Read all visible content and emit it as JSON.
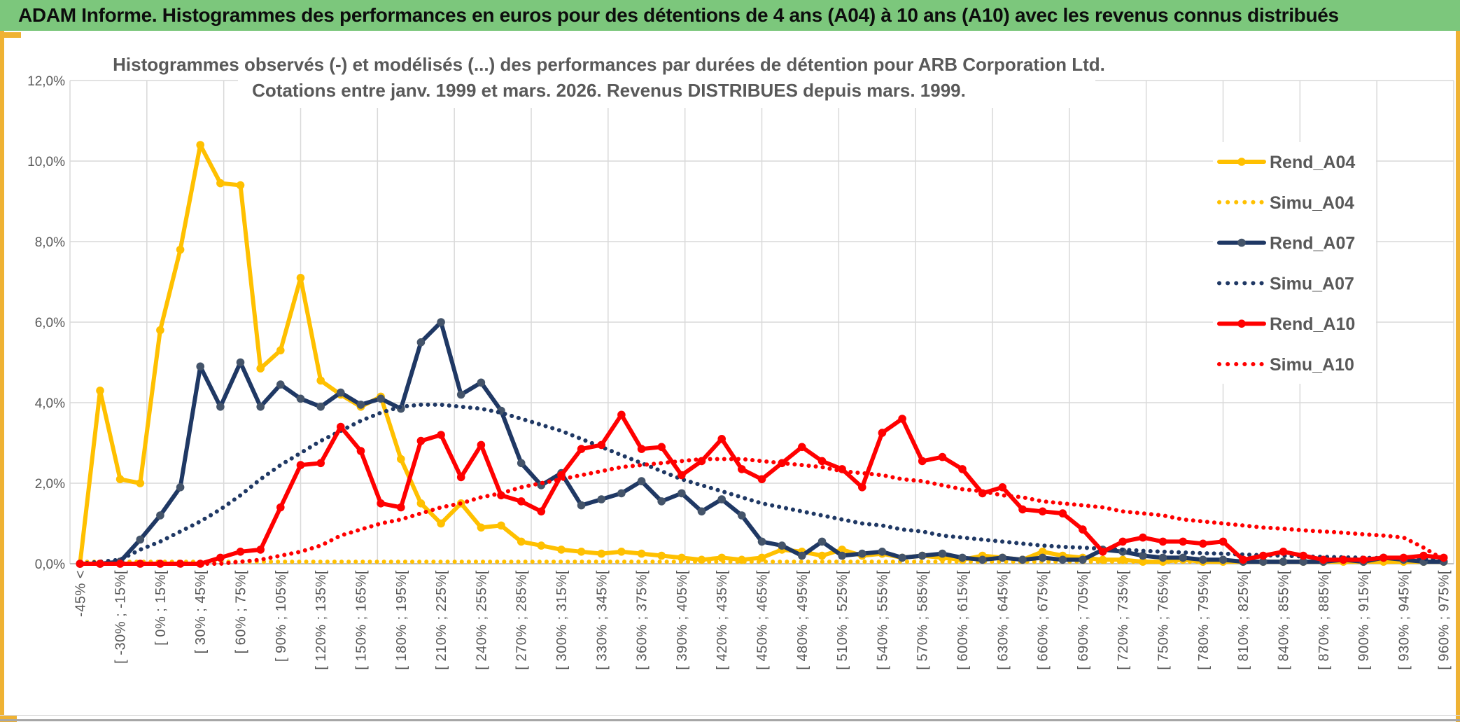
{
  "header": {
    "title": "ADAM Informe. Histogrammes des performances en euros pour des détentions de 4 ans (A04) à 10 ans (A10) avec les revenus connus distribués"
  },
  "chart_data": {
    "type": "line",
    "title": "Histogrammes observés (-) et modélisés (...) des performances par durées de détention pour ARB Corporation Ltd.",
    "subtitle": "Cotations entre janv. 1999 et mars. 2026. Revenus DISTRIBUES depuis mars. 1999.",
    "ylim": [
      0,
      12
    ],
    "y_tick_step_pct": 2,
    "y_tick_labels": [
      "0,0%",
      "2,0%",
      "4,0%",
      "6,0%",
      "8,0%",
      "10,0%",
      "12,0%"
    ],
    "x_bin_width_pct": 15,
    "n_points": 69,
    "x_labels_every": 2,
    "x_tick_labels": [
      "-45% <",
      "[ -30% ; -15%[",
      "[ 0% ; 15%[",
      "[ 30% ; 45%[",
      "[ 60% ; 75%[",
      "[ 90% ; 105%[",
      "[ 120% ; 135%[",
      "[ 150% ; 165%[",
      "[ 180% ; 195%[",
      "[ 210% ; 225%[",
      "[ 240% ; 255%[",
      "[ 270% ; 285%[",
      "[ 300% ; 315%[",
      "[ 330% ; 345%[",
      "[ 360% ; 375%[",
      "[ 390% ; 405%[",
      "[ 420% ; 435%[",
      "[ 450% ; 465%[",
      "[ 480% ; 495%[",
      "[ 510% ; 525%[",
      "[ 540% ; 555%[",
      "[ 570% ; 585%[",
      "[ 600% ; 615%[",
      "[ 630% ; 645%[",
      "[ 660% ; 675%[",
      "[ 690% ; 705%[",
      "[ 720% ; 735%[",
      "[ 750% ; 765%[",
      "[ 780% ; 795%[",
      "[ 810% ; 825%[",
      "[ 840% ; 855%[",
      "[ 870% ; 885%[",
      "[ 900% ; 915%[",
      "[ 930% ; 945%[",
      "[ 960% ; 975%["
    ],
    "grid": true,
    "legend_position": "right-overlay",
    "series": [
      {
        "name": "Rend_A04",
        "color": "#FFC000",
        "style": "solid",
        "marker": "circle",
        "marker_color": "#FFC000",
        "values": [
          0,
          4.3,
          2.1,
          2,
          5.8,
          7.8,
          10.4,
          9.45,
          9.4,
          4.85,
          5.3,
          7.1,
          4.55,
          4.2,
          3.9,
          4.15,
          2.6,
          1.5,
          1,
          1.5,
          0.9,
          0.95,
          0.55,
          0.45,
          0.35,
          0.3,
          0.25,
          0.3,
          0.25,
          0.2,
          0.15,
          0.1,
          0.15,
          0.1,
          0.15,
          0.35,
          0.3,
          0.2,
          0.35,
          0.2,
          0.25,
          0.15,
          0.2,
          0.15,
          0.1,
          0.2,
          0.15,
          0.1,
          0.3,
          0.2,
          0.15,
          0.1,
          0.1,
          0.05,
          0.05,
          0.1,
          0.05,
          0.05,
          0.05,
          0.05,
          0.05,
          0.05,
          0.05,
          0.05,
          0.05,
          0.05,
          0.05,
          0.05,
          0.05
        ]
      },
      {
        "name": "Simu_A04",
        "color": "#FFC000",
        "style": "dotted",
        "marker": "none",
        "values": [
          0.05,
          0.05,
          0.05,
          0.05,
          0.05,
          0.05,
          0.05,
          0.05,
          0.05,
          0.05,
          0.05,
          0.05,
          0.05,
          0.05,
          0.05,
          0.05,
          0.05,
          0.05,
          0.05,
          0.05,
          0.05,
          0.05,
          0.05,
          0.05,
          0.05,
          0.05,
          0.05,
          0.05,
          0.05,
          0.05,
          0.05,
          0.05,
          0.05,
          0.05,
          0.05,
          0.05,
          0.05,
          0.05,
          0.05,
          0.05,
          0.05,
          0.05,
          0.05,
          0.05,
          0.05,
          0.05,
          0.05,
          0.05,
          0.05,
          0.05,
          0.05,
          0.05,
          0.05,
          0.05,
          0.05,
          0.05,
          0.05,
          0.05,
          0.05,
          0.05,
          0.05,
          0.05,
          0.05,
          0.05,
          0.05,
          0.05,
          0.05,
          0.05,
          0.05
        ]
      },
      {
        "name": "Rend_A07",
        "color": "#1F3864",
        "style": "solid",
        "marker": "circle",
        "marker_color": "#44546A",
        "values": [
          0,
          0,
          0.05,
          0.6,
          1.2,
          1.9,
          4.9,
          3.9,
          5,
          3.9,
          4.45,
          4.1,
          3.9,
          4.25,
          3.95,
          4.1,
          3.85,
          5.5,
          6,
          4.2,
          4.5,
          3.8,
          2.5,
          1.95,
          2.25,
          1.45,
          1.6,
          1.75,
          2.05,
          1.55,
          1.75,
          1.3,
          1.6,
          1.2,
          0.55,
          0.45,
          0.2,
          0.55,
          0.2,
          0.25,
          0.3,
          0.15,
          0.2,
          0.25,
          0.15,
          0.1,
          0.15,
          0.1,
          0.15,
          0.1,
          0.1,
          0.35,
          0.3,
          0.2,
          0.15,
          0.15,
          0.1,
          0.1,
          0.05,
          0.05,
          0.05,
          0.05,
          0.05,
          0.1,
          0.05,
          0.15,
          0.1,
          0.05,
          0.05
        ]
      },
      {
        "name": "Simu_A07",
        "color": "#1F3864",
        "style": "dotted",
        "marker": "none",
        "values": [
          0,
          0.05,
          0.1,
          0.35,
          0.55,
          0.8,
          1.05,
          1.35,
          1.7,
          2.1,
          2.45,
          2.75,
          3.05,
          3.3,
          3.55,
          3.75,
          3.9,
          3.95,
          3.95,
          3.9,
          3.85,
          3.75,
          3.6,
          3.45,
          3.3,
          3.1,
          2.9,
          2.7,
          2.5,
          2.3,
          2.1,
          1.95,
          1.8,
          1.65,
          1.5,
          1.4,
          1.3,
          1.2,
          1.1,
          1,
          0.95,
          0.85,
          0.8,
          0.7,
          0.65,
          0.6,
          0.55,
          0.5,
          0.45,
          0.42,
          0.4,
          0.37,
          0.35,
          0.32,
          0.3,
          0.28,
          0.26,
          0.25,
          0.23,
          0.21,
          0.2,
          0.18,
          0.17,
          0.16,
          0.15,
          0.14,
          0.13,
          0.12,
          0.1
        ]
      },
      {
        "name": "Rend_A10",
        "color": "#FF0000",
        "style": "solid",
        "marker": "circle",
        "marker_color": "#FF0000",
        "values": [
          0,
          0,
          0,
          0,
          0,
          0,
          0,
          0.15,
          0.3,
          0.35,
          1.4,
          2.45,
          2.5,
          3.4,
          2.8,
          1.5,
          1.4,
          3.05,
          3.2,
          2.15,
          2.95,
          1.7,
          1.55,
          1.3,
          2.2,
          2.85,
          2.95,
          3.7,
          2.85,
          2.9,
          2.2,
          2.55,
          3.1,
          2.35,
          2.1,
          2.5,
          2.9,
          2.55,
          2.35,
          1.9,
          3.25,
          3.6,
          2.55,
          2.65,
          2.35,
          1.75,
          1.9,
          1.35,
          1.3,
          1.25,
          0.85,
          0.3,
          0.55,
          0.65,
          0.55,
          0.55,
          0.5,
          0.55,
          0.1,
          0.2,
          0.3,
          0.2,
          0.1,
          0.1,
          0.1,
          0.15,
          0.15,
          0.2,
          0.15
        ]
      },
      {
        "name": "Simu_A10",
        "color": "#FF0000",
        "style": "dotted",
        "marker": "none",
        "values": [
          0,
          0,
          0,
          0,
          0,
          0,
          0,
          0,
          0.05,
          0.1,
          0.2,
          0.3,
          0.45,
          0.7,
          0.85,
          1,
          1.1,
          1.25,
          1.4,
          1.5,
          1.65,
          1.75,
          1.9,
          2,
          2.1,
          2.2,
          2.3,
          2.4,
          2.45,
          2.5,
          2.55,
          2.6,
          2.6,
          2.6,
          2.55,
          2.5,
          2.45,
          2.4,
          2.3,
          2.25,
          2.2,
          2.1,
          2.05,
          1.95,
          1.85,
          1.8,
          1.7,
          1.65,
          1.55,
          1.5,
          1.45,
          1.4,
          1.3,
          1.25,
          1.2,
          1.1,
          1.05,
          1,
          0.95,
          0.9,
          0.87,
          0.83,
          0.8,
          0.77,
          0.73,
          0.7,
          0.65,
          0.4,
          0.1
        ]
      }
    ]
  },
  "colors": {
    "header_bg": "#7CC77C",
    "gold_border": "#EFB233",
    "gridline": "#D9D9D9",
    "axis_line": "#BFBFBF",
    "text": "#595959"
  }
}
